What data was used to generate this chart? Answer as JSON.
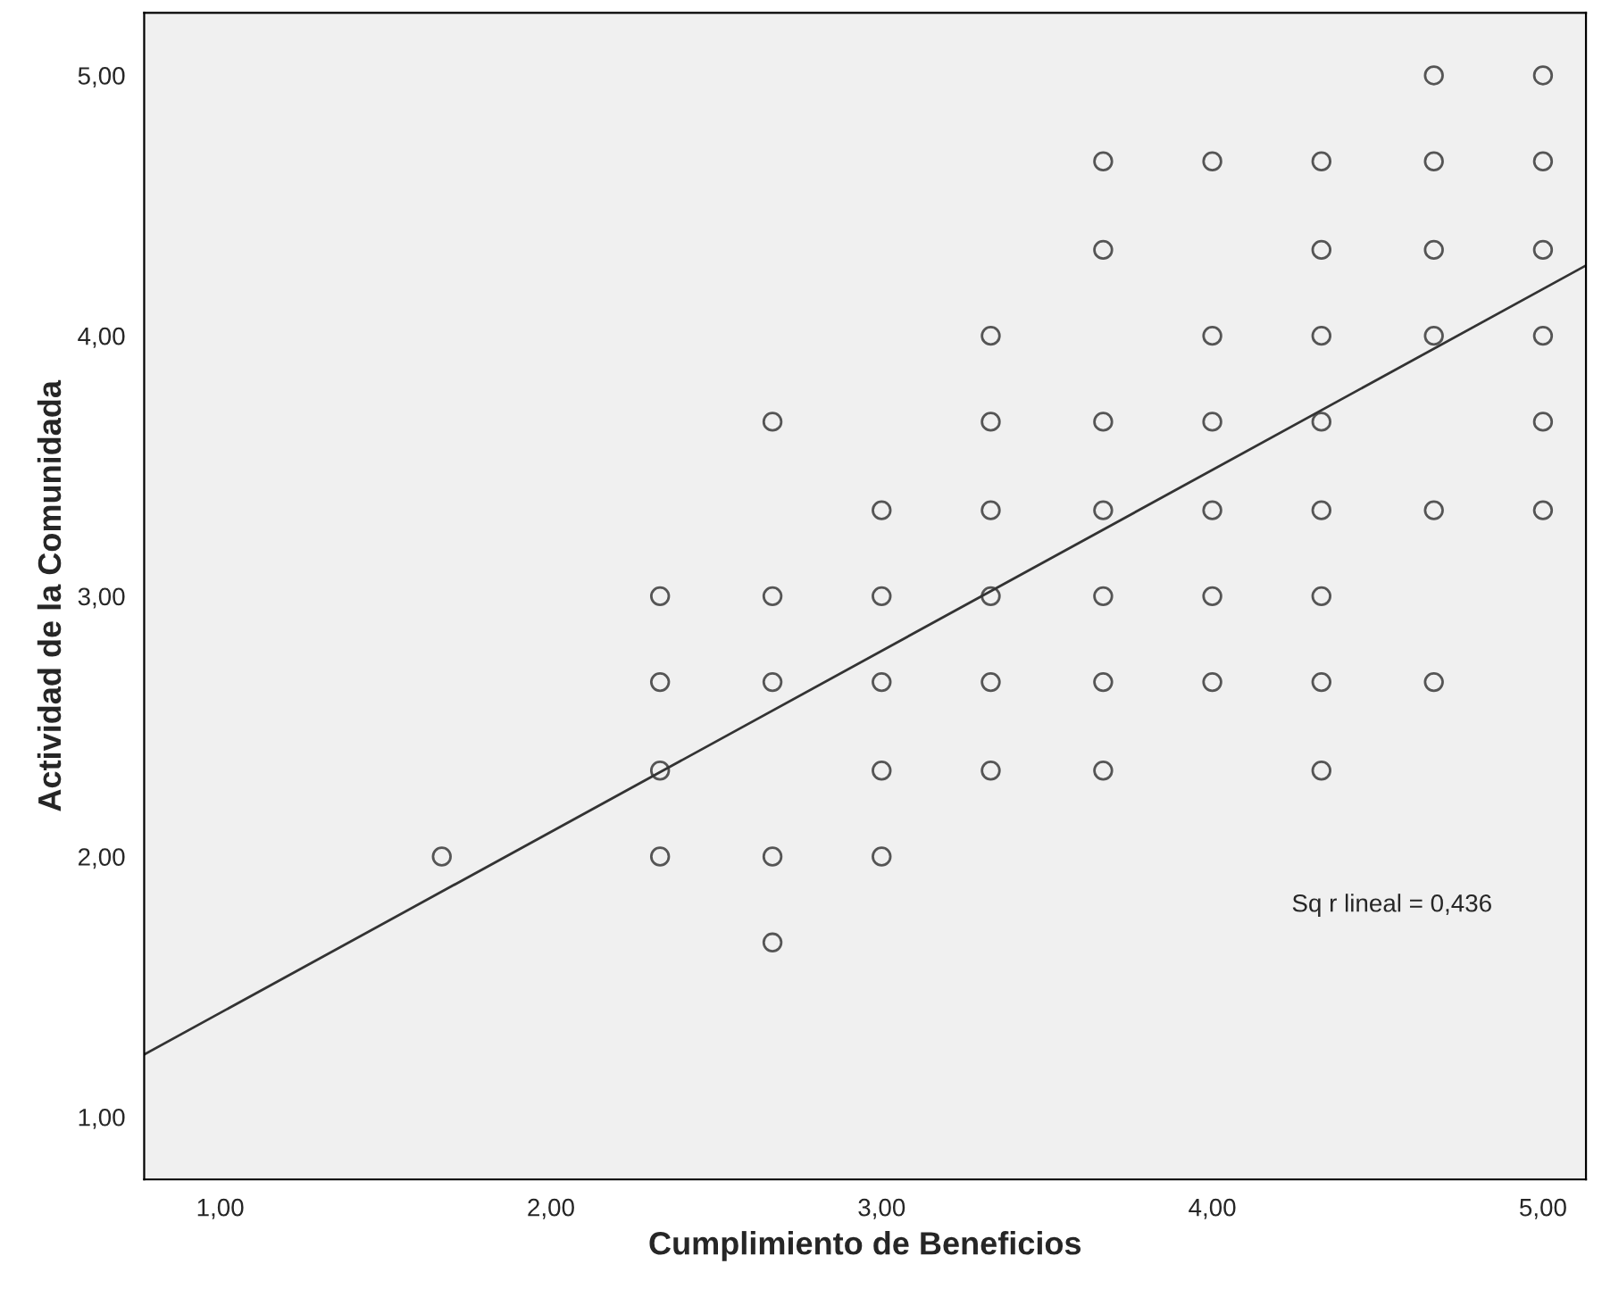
{
  "chart_data": {
    "type": "scatter",
    "xlabel": "Cumplimiento de Beneficios",
    "ylabel": "Actividad de la Comunidada",
    "xlim": [
      0.77,
      5.13
    ],
    "ylim": [
      0.76,
      5.24
    ],
    "xticks": [
      {
        "value": 1,
        "label": "1,00"
      },
      {
        "value": 2,
        "label": "2,00"
      },
      {
        "value": 3,
        "label": "3,00"
      },
      {
        "value": 4,
        "label": "4,00"
      },
      {
        "value": 5,
        "label": "5,00"
      }
    ],
    "yticks": [
      {
        "value": 1,
        "label": "1,00"
      },
      {
        "value": 2,
        "label": "2,00"
      },
      {
        "value": 3,
        "label": "3,00"
      },
      {
        "value": 4,
        "label": "4,00"
      },
      {
        "value": 5,
        "label": "5,00"
      }
    ],
    "grid": false,
    "annotations": [
      "Sq r lineal = 0,436"
    ],
    "series": [
      {
        "marker": "circle",
        "color": "#555555",
        "x": [
          1.67,
          2.33,
          2.33,
          2.33,
          2.33,
          2.67,
          2.67,
          2.67,
          2.67,
          2.67,
          3.0,
          3.0,
          3.0,
          3.0,
          3.0,
          3.33,
          3.33,
          3.33,
          3.33,
          3.33,
          3.33,
          3.67,
          3.67,
          3.67,
          3.67,
          3.67,
          3.67,
          3.67,
          4.0,
          4.0,
          4.0,
          4.0,
          4.0,
          4.0,
          4.33,
          4.33,
          4.33,
          4.33,
          4.33,
          4.33,
          4.33,
          4.33,
          4.67,
          4.67,
          4.67,
          4.67,
          4.67,
          4.67,
          5.0,
          5.0,
          5.0,
          5.0,
          5.0,
          5.0
        ],
        "values": [
          2.0,
          3.0,
          2.67,
          2.33,
          2.0,
          3.67,
          3.0,
          2.67,
          2.0,
          1.67,
          3.33,
          3.0,
          2.67,
          2.33,
          2.0,
          4.0,
          3.67,
          3.33,
          3.0,
          2.67,
          2.33,
          4.67,
          4.33,
          3.67,
          3.33,
          3.0,
          2.67,
          2.33,
          4.67,
          4.0,
          3.67,
          3.33,
          3.0,
          2.67,
          4.67,
          4.33,
          4.0,
          3.67,
          3.33,
          3.0,
          2.67,
          2.33,
          5.0,
          4.67,
          4.33,
          4.0,
          3.33,
          2.67,
          5.0,
          4.67,
          4.33,
          4.0,
          3.67,
          3.33
        ]
      },
      {
        "type": "line",
        "marker": "none",
        "color": "#333333",
        "x": [
          0.77,
          5.13
        ],
        "values": [
          1.24,
          4.27
        ]
      }
    ]
  }
}
